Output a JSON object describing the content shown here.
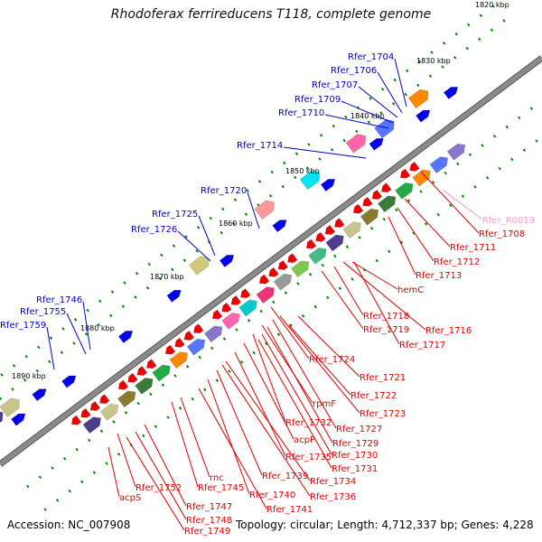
{
  "title": "Rhodoferax ferrireducens T118, complete genome",
  "footer": {
    "accession": "Accession: NC_007908",
    "topology": "Topology: circular; Length: 4,712,337 bp; Genes: 4,228"
  },
  "colors": {
    "backbone": "#8a8a8a",
    "upper_label": "#0000cc",
    "lower_label": "#dd0000",
    "rna_label": "#ff99cc",
    "tick": "#008800"
  },
  "scale_labels": [
    "1820 kbp",
    "1830 kbp",
    "1840 kbp",
    "1850 kbp",
    "1860 kbp",
    "1870 kbp",
    "1880 kbp",
    "1890 kbp"
  ],
  "upper_genes": [
    "Rfer_1704",
    "Rfer_1706",
    "Rfer_1707",
    "Rfer_1709",
    "Rfer_1710",
    "Rfer_1714",
    "Rfer_1720",
    "Rfer_1725",
    "Rfer_1726",
    "Rfer_1746",
    "Rfer_1755",
    "Rfer_1759"
  ],
  "lower_genes": [
    "Rfer_R0019",
    "Rfer_1708",
    "Rfer_1711",
    "Rfer_1712",
    "Rfer_1713",
    "hemC",
    "Rfer_1718",
    "Rfer_1716",
    "Rfer_1719",
    "Rfer_1717",
    "Rfer_1724",
    "Rfer_1721",
    "Rfer_1722",
    "rpmF",
    "Rfer_1723",
    "Rfer_1732",
    "Rfer_1727",
    "acpP",
    "Rfer_1729",
    "Rfer_1735",
    "Rfer_1730",
    "Rfer_1731",
    "Rfer_1734",
    "Rfer_1739",
    "Rfer_1736",
    "rnc",
    "Rfer_1740",
    "Rfer_1745",
    "Rfer_1741",
    "Rfer_1752",
    "Rfer_1747",
    "acpS",
    "Rfer_1748",
    "Rfer_1749"
  ]
}
